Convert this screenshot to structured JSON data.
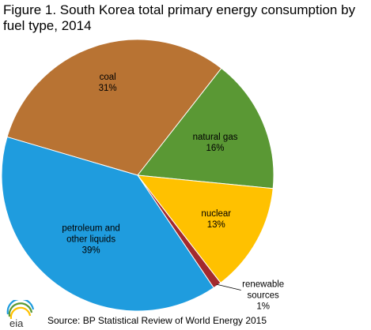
{
  "chart_data": {
    "type": "pie",
    "title": "Figure 1. South Korea total primary energy consumption by fuel type, 2014",
    "slices": [
      {
        "label": [
          "coal",
          "31%"
        ],
        "value": 31,
        "color": "#B87333"
      },
      {
        "label": [
          "natural gas",
          "16%"
        ],
        "value": 16,
        "color": "#5A9834"
      },
      {
        "label": [
          "nuclear",
          "13%"
        ],
        "value": 13,
        "color": "#FFC100"
      },
      {
        "label": [
          "renewable",
          "sources",
          "1%"
        ],
        "value": 1,
        "color": "#A32A2E"
      },
      {
        "label": [
          "petroleum and",
          "other liquids",
          "39%"
        ],
        "value": 39,
        "color": "#1F9CDE"
      }
    ],
    "legend": "none"
  },
  "footer": {
    "logo_text": "eia",
    "source": "Source:  BP Statistical Review  of World Energy 2015"
  }
}
